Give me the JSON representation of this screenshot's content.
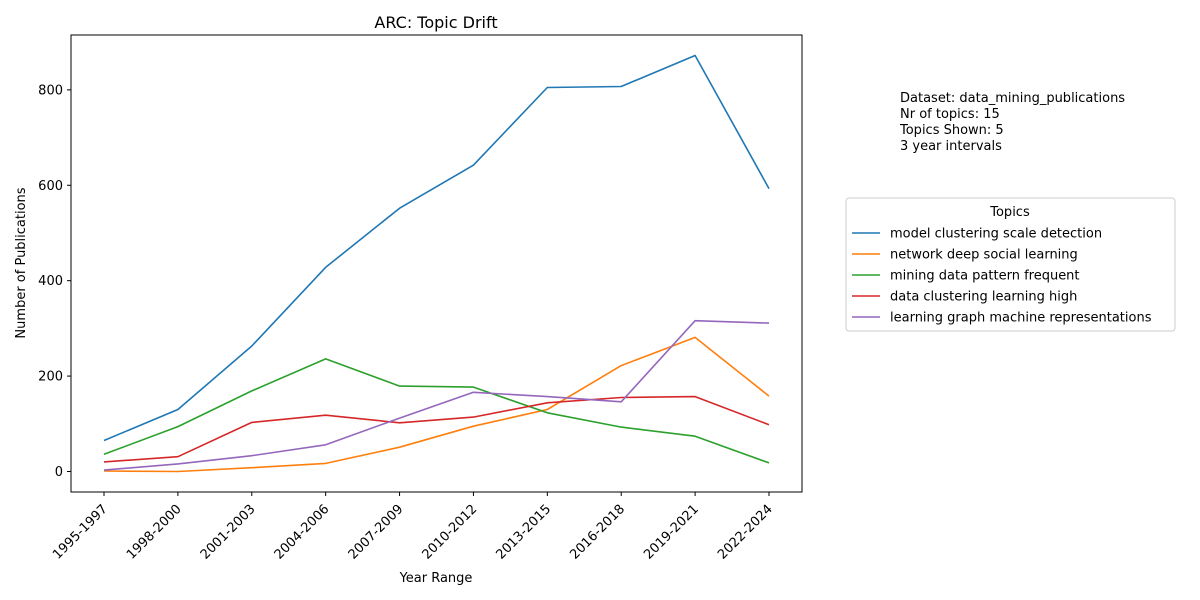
{
  "chart_data": {
    "type": "line",
    "title": "ARC: Topic Drift",
    "xlabel": "Year Range",
    "ylabel": "Number of Publications",
    "categories": [
      "1995-1997",
      "1998-2000",
      "2001-2003",
      "2004-2006",
      "2007-2009",
      "2010-2012",
      "2013-2015",
      "2016-2018",
      "2019-2021",
      "2022-2024"
    ],
    "ylim": [
      -43,
      915
    ],
    "yticks": [
      0,
      200,
      400,
      600,
      800
    ],
    "grid": false,
    "legend": {
      "title": "Topics",
      "placement": "right-outside"
    },
    "series": [
      {
        "name": "model clustering scale detection",
        "color": "#1f77b4",
        "values": [
          65,
          130,
          263,
          428,
          552,
          642,
          805,
          807,
          872,
          593
        ]
      },
      {
        "name": "network deep social learning",
        "color": "#ff7f0e",
        "values": [
          1,
          0,
          8,
          17,
          51,
          95,
          130,
          222,
          281,
          158
        ]
      },
      {
        "name": "mining data pattern frequent",
        "color": "#2ca02c",
        "values": [
          36,
          94,
          169,
          236,
          179,
          177,
          123,
          93,
          74,
          18
        ]
      },
      {
        "name": "data clustering learning high",
        "color": "#d62728",
        "values": [
          20,
          31,
          103,
          118,
          102,
          114,
          144,
          155,
          157,
          98
        ]
      },
      {
        "name": "learning graph machine representations",
        "color": "#9467bd",
        "values": [
          3,
          16,
          33,
          56,
          112,
          166,
          157,
          146,
          316,
          311
        ]
      }
    ],
    "annotation": [
      "Dataset: data_mining_publications",
      "Nr of topics: 15",
      "Topics Shown: 5",
      "3 year intervals"
    ]
  }
}
